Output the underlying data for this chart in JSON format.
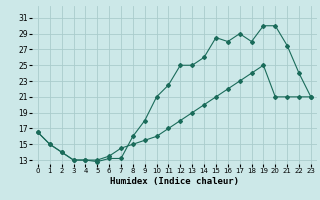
{
  "xlabel": "Humidex (Indice chaleur)",
  "bg_color": "#cce8e8",
  "grid_color": "#aacccc",
  "line_color": "#1a6b5a",
  "xlim": [
    -0.5,
    23.5
  ],
  "ylim": [
    12.5,
    32.5
  ],
  "xticks": [
    0,
    1,
    2,
    3,
    4,
    5,
    6,
    7,
    8,
    9,
    10,
    11,
    12,
    13,
    14,
    15,
    16,
    17,
    18,
    19,
    20,
    21,
    22,
    23
  ],
  "yticks": [
    13,
    15,
    17,
    19,
    21,
    23,
    25,
    27,
    29,
    31
  ],
  "line1_x": [
    0,
    1,
    2,
    3,
    4,
    5,
    6,
    7,
    8,
    9,
    10,
    11,
    12,
    13,
    14,
    15,
    16,
    17,
    18,
    19,
    20,
    21,
    22,
    23
  ],
  "line1_y": [
    16.5,
    15,
    14,
    13,
    13,
    12.8,
    13.2,
    13.2,
    16,
    18,
    21,
    22.5,
    25,
    25,
    26,
    28.5,
    28,
    29,
    28,
    30,
    30,
    27.5,
    24,
    21
  ],
  "line2_x": [
    0,
    1,
    2,
    3,
    4,
    5,
    6,
    7,
    8,
    9,
    10,
    11,
    12,
    13,
    14,
    15,
    16,
    17,
    18,
    19,
    20,
    21,
    22,
    23
  ],
  "line2_y": [
    16.5,
    15,
    14,
    13,
    13,
    13,
    13.5,
    14.5,
    15,
    15.5,
    16,
    17,
    18,
    19,
    20,
    21,
    22,
    23,
    24,
    25,
    21,
    21,
    21,
    21
  ]
}
